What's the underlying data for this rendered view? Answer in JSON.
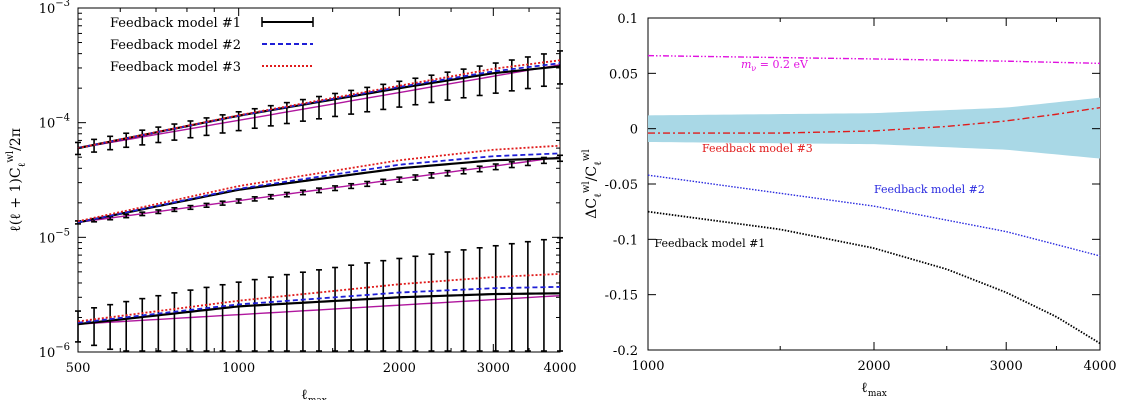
{
  "chart_data": [
    {
      "type": "line",
      "xlabel": "ℓ_max",
      "ylabel": "ℓ(ℓ+1)C_ℓ^wl / 2π",
      "x_scale": "log",
      "y_scale": "log",
      "xlim": [
        500,
        4000
      ],
      "ylim": [
        1e-06,
        0.001
      ],
      "x_ticks": [
        500,
        1000,
        2000,
        3000,
        4000
      ],
      "x_tick_labels": [
        "500",
        "1000",
        "2000",
        "3000",
        "4000"
      ],
      "y_ticks": [
        1e-06,
        1e-05,
        0.0001,
        0.001
      ],
      "y_tick_base": "10",
      "y_tick_exponents": [
        "−6",
        "−5",
        "−4",
        "−3"
      ],
      "grid": false,
      "legend_position": "top-left",
      "legend": [
        {
          "label": "Feedback model #1",
          "color": "#000000",
          "style": "solid-errorbar"
        },
        {
          "label": "Feedback model #2",
          "color": "#1f1fd6",
          "style": "dashed"
        },
        {
          "label": "Feedback model #3",
          "color": "#e01b1b",
          "style": "dotted"
        }
      ],
      "bins": [
        {
          "reference": {
            "x": [
              500,
              4000
            ],
            "y": [
              6e-05,
              0.00032
            ],
            "color": "#b0179e"
          },
          "curves": [
            {
              "name": "Feedback model #1",
              "color": "#000000",
              "x": [
                500,
                1000,
                2000,
                3000,
                4000
              ],
              "y": [
                6e-05,
                0.000115,
                0.0002,
                0.00027,
                0.00031
              ]
            },
            {
              "name": "Feedback model #2",
              "color": "#1f1fd6",
              "x": [
                500,
                1000,
                2000,
                3000,
                4000
              ],
              "y": [
                6e-05,
                0.000115,
                0.000205,
                0.00028,
                0.00033
              ]
            },
            {
              "name": "Feedback model #3",
              "color": "#e01b1b",
              "x": [
                500,
                1000,
                2000,
                3000,
                4000
              ],
              "y": [
                6e-05,
                0.000116,
                0.00021,
                0.000295,
                0.00035
              ]
            }
          ],
          "errorbars": {
            "x_start": 500,
            "x_end": 4000,
            "count": 31,
            "rel_err_start": 0.12,
            "rel_err_end": 0.32,
            "y_start": 6e-05,
            "y_end": 0.00032
          }
        },
        {
          "reference": {
            "x": [
              500,
              4000
            ],
            "y": [
              1.35e-05,
              5e-05
            ],
            "color": "#b0179e"
          },
          "curves": [
            {
              "name": "Feedback model #1",
              "color": "#000000",
              "x": [
                500,
                1000,
                2000,
                3000,
                4000
              ],
              "y": [
                1.35e-05,
                2.6e-05,
                4e-05,
                4.7e-05,
                4.9e-05
              ]
            },
            {
              "name": "Feedback model #2",
              "color": "#1f1fd6",
              "x": [
                500,
                1000,
                2000,
                3000,
                4000
              ],
              "y": [
                1.35e-05,
                2.65e-05,
                4.3e-05,
                5.1e-05,
                5.4e-05
              ]
            },
            {
              "name": "Feedback model #3",
              "color": "#e01b1b",
              "x": [
                500,
                1000,
                2000,
                3000,
                4000
              ],
              "y": [
                1.38e-05,
                2.8e-05,
                4.7e-05,
                5.8e-05,
                6.3e-05
              ]
            }
          ],
          "errorbars": {
            "x_start": 500,
            "x_end": 4000,
            "count": 31,
            "rel_err_start": 0.03,
            "rel_err_end": 0.06,
            "y_start": 1.35e-05,
            "y_end": 4.9e-05
          }
        },
        {
          "reference": {
            "x": [
              500,
              4000
            ],
            "y": [
              1.75e-06,
              3.1e-06
            ],
            "color": "#b0179e"
          },
          "curves": [
            {
              "name": "Feedback model #1",
              "color": "#000000",
              "x": [
                500,
                1000,
                2000,
                3000,
                4000
              ],
              "y": [
                1.75e-06,
                2.5e-06,
                3e-06,
                3.2e-06,
                3.25e-06
              ]
            },
            {
              "name": "Feedback model #2",
              "color": "#1f1fd6",
              "x": [
                500,
                1000,
                2000,
                3000,
                4000
              ],
              "y": [
                1.8e-06,
                2.6e-06,
                3.3e-06,
                3.6e-06,
                3.7e-06
              ]
            },
            {
              "name": "Feedback model #3",
              "color": "#e01b1b",
              "x": [
                500,
                1000,
                2000,
                3000,
                4000
              ],
              "y": [
                1.85e-06,
                2.8e-06,
                3.9e-06,
                4.5e-06,
                4.8e-06
              ]
            }
          ],
          "errorbars": {
            "x_start": 500,
            "x_end": 4000,
            "count": 31,
            "rel_err_start": 0.3,
            "rel_err_end": 2.1,
            "y_start": 1.75e-06,
            "y_end": 3.2e-06
          }
        }
      ]
    },
    {
      "type": "line",
      "xlabel": "ℓ_max",
      "ylabel": "ΔC_ℓ^wl / C_ℓ^wl",
      "x_scale": "log",
      "y_scale": "linear",
      "xlim": [
        1000,
        4000
      ],
      "ylim": [
        -0.2,
        0.1
      ],
      "x_ticks": [
        1000,
        2000,
        3000,
        4000
      ],
      "x_tick_labels": [
        "1000",
        "2000",
        "3000",
        "4000"
      ],
      "y_ticks": [
        -0.2,
        -0.15,
        -0.1,
        -0.05,
        0,
        0.05,
        0.1
      ],
      "y_tick_labels": [
        "-0.2",
        "-0.15",
        "-0.1",
        "-0.05",
        "0",
        "0.05",
        "0.1"
      ],
      "grid": false,
      "band": {
        "color": "#a9d8e6",
        "x": [
          1000,
          2000,
          3000,
          4000
        ],
        "upper": [
          0.012,
          0.014,
          0.019,
          0.028
        ],
        "lower": [
          -0.012,
          -0.014,
          -0.019,
          -0.027
        ]
      },
      "series": [
        {
          "name": "m_ν = 0.2 eV",
          "color": "#e010e0",
          "style": "dash-dot-dot",
          "x": [
            1000,
            2000,
            3000,
            4000
          ],
          "y": [
            0.066,
            0.063,
            0.061,
            0.059
          ]
        },
        {
          "name": "Feedback model #3",
          "color": "#e01b1b",
          "style": "dash-dot",
          "x": [
            1000,
            1500,
            2000,
            2500,
            3000,
            3500,
            4000
          ],
          "y": [
            -0.004,
            -0.004,
            -0.002,
            0.002,
            0.007,
            0.013,
            0.019
          ]
        },
        {
          "name": "Feedback model #2",
          "color": "#2a2adf",
          "style": "dotted",
          "x": [
            1000,
            2000,
            3000,
            4000
          ],
          "y": [
            -0.042,
            -0.07,
            -0.093,
            -0.115
          ]
        },
        {
          "name": "Feedback model #1",
          "color": "#000000",
          "style": "dotted",
          "x": [
            1000,
            1500,
            2000,
            2500,
            3000,
            3500,
            4000
          ],
          "y": [
            -0.075,
            -0.091,
            -0.108,
            -0.127,
            -0.148,
            -0.17,
            -0.194
          ]
        }
      ],
      "annotations": [
        {
          "text_main": "m",
          "text_sub": "ν",
          "text_rest": " = 0.2 eV",
          "color": "#e010e0",
          "x": 1330,
          "y": 0.055
        },
        {
          "text": "Feedback model #3",
          "color": "#e01b1b",
          "x": 1180,
          "y": -0.021
        },
        {
          "text": "Feedback model #2",
          "color": "#2a2adf",
          "x": 2000,
          "y": -0.058
        },
        {
          "text": "Feedback model #1",
          "color": "#000000",
          "x": 1020,
          "y": -0.107
        }
      ]
    }
  ]
}
